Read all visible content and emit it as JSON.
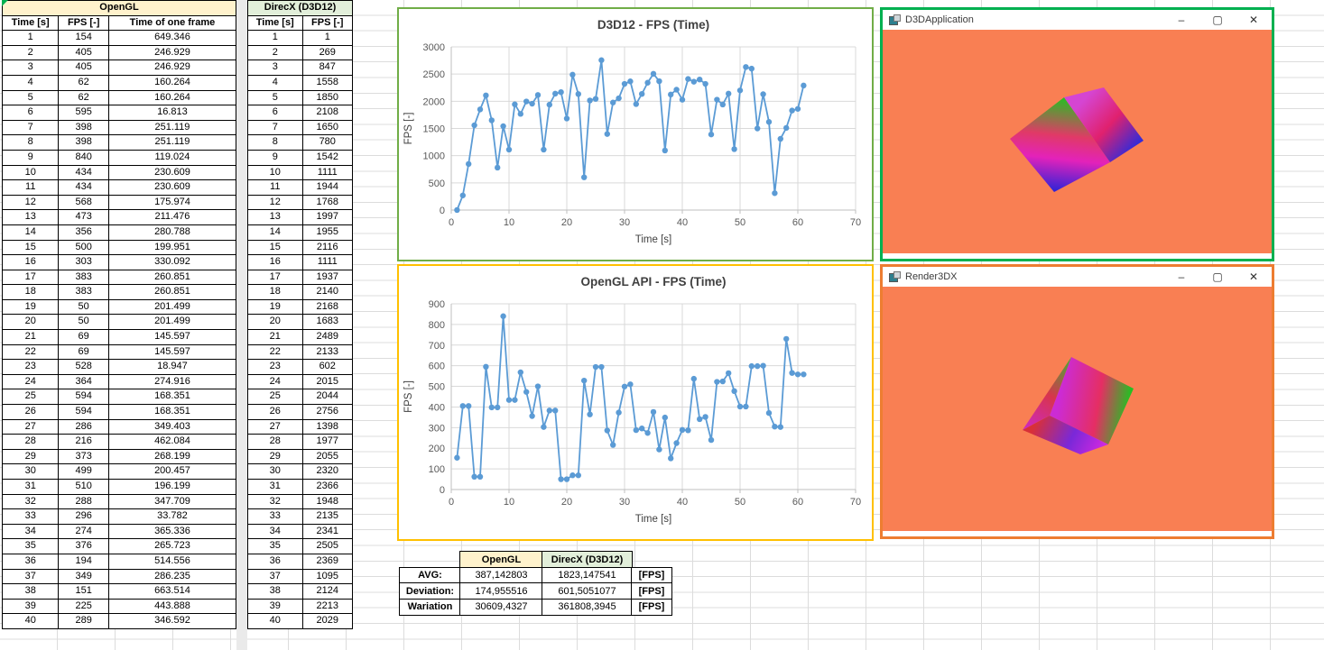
{
  "sheet": {
    "gridline_color": "#dcdcdc",
    "cell_indicator_color": "#00B050"
  },
  "tables": {
    "opengl": {
      "title": "OpenGL",
      "title_bg": "#FFF2CC",
      "columns": [
        "Time [s]",
        "FPS [-]",
        "Time of one frame"
      ],
      "rows": [
        [
          1,
          154,
          "649.346"
        ],
        [
          2,
          405,
          "246.929"
        ],
        [
          3,
          405,
          "246.929"
        ],
        [
          4,
          62,
          "160.264"
        ],
        [
          5,
          62,
          "160.264"
        ],
        [
          6,
          595,
          "16.813"
        ],
        [
          7,
          398,
          "251.119"
        ],
        [
          8,
          398,
          "251.119"
        ],
        [
          9,
          840,
          "119.024"
        ],
        [
          10,
          434,
          "230.609"
        ],
        [
          11,
          434,
          "230.609"
        ],
        [
          12,
          568,
          "175.974"
        ],
        [
          13,
          473,
          "211.476"
        ],
        [
          14,
          356,
          "280.788"
        ],
        [
          15,
          500,
          "199.951"
        ],
        [
          16,
          303,
          "330.092"
        ],
        [
          17,
          383,
          "260.851"
        ],
        [
          18,
          383,
          "260.851"
        ],
        [
          19,
          50,
          "201.499"
        ],
        [
          20,
          50,
          "201.499"
        ],
        [
          21,
          69,
          "145.597"
        ],
        [
          22,
          69,
          "145.597"
        ],
        [
          23,
          528,
          "18.947"
        ],
        [
          24,
          364,
          "274.916"
        ],
        [
          25,
          594,
          "168.351"
        ],
        [
          26,
          594,
          "168.351"
        ],
        [
          27,
          286,
          "349.403"
        ],
        [
          28,
          216,
          "462.084"
        ],
        [
          29,
          373,
          "268.199"
        ],
        [
          30,
          499,
          "200.457"
        ],
        [
          31,
          510,
          "196.199"
        ],
        [
          32,
          288,
          "347.709"
        ],
        [
          33,
          296,
          "33.782"
        ],
        [
          34,
          274,
          "365.336"
        ],
        [
          35,
          376,
          "265.723"
        ],
        [
          36,
          194,
          "514.556"
        ],
        [
          37,
          349,
          "286.235"
        ],
        [
          38,
          151,
          "663.514"
        ],
        [
          39,
          225,
          "443.888"
        ],
        [
          40,
          289,
          "346.592"
        ]
      ]
    },
    "directx": {
      "title": "DirecX (D3D12)",
      "title_bg": "#E2EFDA",
      "columns": [
        "Time [s]",
        "FPS [-]"
      ],
      "rows": [
        [
          1,
          1
        ],
        [
          2,
          269
        ],
        [
          3,
          847
        ],
        [
          4,
          1558
        ],
        [
          5,
          1850
        ],
        [
          6,
          2108
        ],
        [
          7,
          1650
        ],
        [
          8,
          780
        ],
        [
          9,
          1542
        ],
        [
          10,
          1111
        ],
        [
          11,
          1944
        ],
        [
          12,
          1768
        ],
        [
          13,
          1997
        ],
        [
          14,
          1955
        ],
        [
          15,
          2116
        ],
        [
          16,
          1111
        ],
        [
          17,
          1937
        ],
        [
          18,
          2140
        ],
        [
          19,
          2168
        ],
        [
          20,
          1683
        ],
        [
          21,
          2489
        ],
        [
          22,
          2133
        ],
        [
          23,
          602
        ],
        [
          24,
          2015
        ],
        [
          25,
          2044
        ],
        [
          26,
          2756
        ],
        [
          27,
          1398
        ],
        [
          28,
          1977
        ],
        [
          29,
          2055
        ],
        [
          30,
          2320
        ],
        [
          31,
          2366
        ],
        [
          32,
          1948
        ],
        [
          33,
          2135
        ],
        [
          34,
          2341
        ],
        [
          35,
          2505
        ],
        [
          36,
          2369
        ],
        [
          37,
          1095
        ],
        [
          38,
          2124
        ],
        [
          39,
          2213
        ],
        [
          40,
          2029
        ]
      ]
    }
  },
  "summary": {
    "col_headers": [
      "OpenGL",
      "DirecX (D3D12)"
    ],
    "header_bgs": [
      "#FFF2CC",
      "#E2EFDA"
    ],
    "rows": [
      {
        "label": "AVG:",
        "opengl": "387,142803",
        "directx": "1823,147541",
        "unit": "[FPS]"
      },
      {
        "label": "Deviation:",
        "opengl": "174,955516",
        "directx": "601,5051077",
        "unit": "[FPS]"
      },
      {
        "label": "Wariation",
        "opengl": "30609,4327",
        "directx": "361808,3945",
        "unit": "[FPS]"
      }
    ]
  },
  "chart_data": [
    {
      "type": "line",
      "title": "D3D12 - FPS (Time)",
      "xlabel": "Time [s]",
      "ylabel": "FPS [-]",
      "xlim": [
        0,
        70
      ],
      "ylim": [
        0,
        3000
      ],
      "xticks": [
        0,
        10,
        20,
        30,
        40,
        50,
        60,
        70
      ],
      "yticks": [
        0,
        500,
        1000,
        1500,
        2000,
        2500,
        3000
      ],
      "grid": true,
      "legend_position": "none",
      "line_color": "#5B9BD5",
      "frame_color": "#70AD47",
      "x": [
        1,
        2,
        3,
        4,
        5,
        6,
        7,
        8,
        9,
        10,
        11,
        12,
        13,
        14,
        15,
        16,
        17,
        18,
        19,
        20,
        21,
        22,
        23,
        24,
        25,
        26,
        27,
        28,
        29,
        30,
        31,
        32,
        33,
        34,
        35,
        36,
        37,
        38,
        39,
        40,
        41,
        42,
        43,
        44,
        45,
        46,
        47,
        48,
        49,
        50,
        51,
        52,
        53,
        54,
        55,
        56,
        57,
        58,
        59,
        60,
        61
      ],
      "y": [
        1,
        269,
        847,
        1558,
        1850,
        2108,
        1650,
        780,
        1542,
        1111,
        1944,
        1768,
        1997,
        1955,
        2116,
        1111,
        1937,
        2140,
        2168,
        1683,
        2489,
        2133,
        602,
        2015,
        2044,
        2756,
        1398,
        1977,
        2055,
        2320,
        2366,
        1948,
        2135,
        2341,
        2505,
        2369,
        1095,
        2124,
        2213,
        2029,
        2410,
        2360,
        2400,
        2320,
        1390,
        2030,
        1940,
        2140,
        1120,
        2200,
        2630,
        2600,
        1500,
        2130,
        1620,
        310,
        1310,
        1510,
        1830,
        1860,
        2290
      ]
    },
    {
      "type": "line",
      "title": "OpenGL API - FPS (Time)",
      "xlabel": "Time [s]",
      "ylabel": "FPS [-]",
      "xlim": [
        0,
        70
      ],
      "ylim": [
        0,
        900
      ],
      "xticks": [
        0,
        10,
        20,
        30,
        40,
        50,
        60,
        70
      ],
      "yticks": [
        0,
        100,
        200,
        300,
        400,
        500,
        600,
        700,
        800,
        900
      ],
      "grid": true,
      "legend_position": "none",
      "line_color": "#5B9BD5",
      "frame_color": "#FFC000",
      "x": [
        1,
        2,
        3,
        4,
        5,
        6,
        7,
        8,
        9,
        10,
        11,
        12,
        13,
        14,
        15,
        16,
        17,
        18,
        19,
        20,
        21,
        22,
        23,
        24,
        25,
        26,
        27,
        28,
        29,
        30,
        31,
        32,
        33,
        34,
        35,
        36,
        37,
        38,
        39,
        40,
        41,
        42,
        43,
        44,
        45,
        46,
        47,
        48,
        49,
        50,
        51,
        52,
        53,
        54,
        55,
        56,
        57,
        58,
        59,
        60,
        61
      ],
      "y": [
        154,
        405,
        405,
        62,
        62,
        595,
        398,
        398,
        840,
        434,
        434,
        568,
        473,
        356,
        500,
        303,
        383,
        383,
        50,
        50,
        69,
        69,
        528,
        364,
        594,
        594,
        286,
        216,
        373,
        499,
        510,
        288,
        296,
        274,
        376,
        194,
        349,
        151,
        225,
        289,
        287,
        537,
        341,
        352,
        240,
        522,
        524,
        564,
        477,
        402,
        402,
        598,
        598,
        600,
        371,
        305,
        303,
        730,
        565,
        558,
        558
      ]
    }
  ],
  "windows": [
    {
      "title": "D3DApplication",
      "border_color": "#00B050",
      "content_color": "#F97F53",
      "minimize_label": "–",
      "maximize_label": "▢",
      "close_label": "✕"
    },
    {
      "title": "Render3DX",
      "border_color": "#ED7D31",
      "content_color": "#F97F53",
      "minimize_label": "–",
      "maximize_label": "▢",
      "close_label": "✕"
    }
  ]
}
